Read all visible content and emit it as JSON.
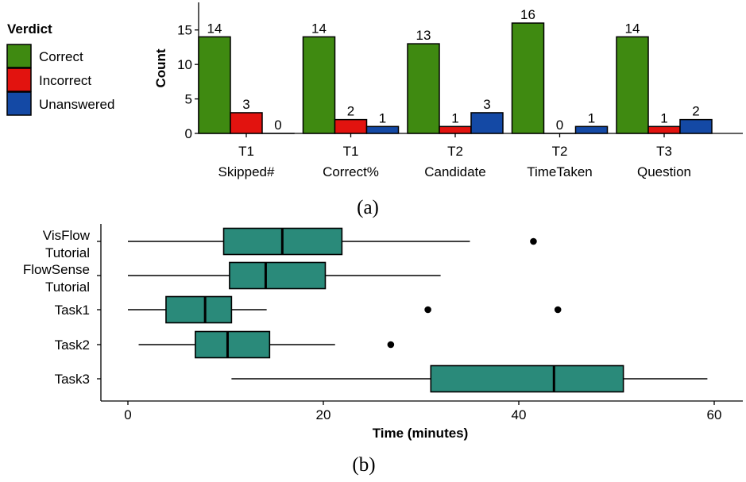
{
  "chart_data": [
    {
      "type": "bar",
      "panel_label": "(a)",
      "legend": {
        "title": "Verdict",
        "placement": "left",
        "entries": [
          {
            "label": "Correct",
            "color": "#3f8a11"
          },
          {
            "label": "Incorrect",
            "color": "#e2130f"
          },
          {
            "label": "Unanswered",
            "color": "#1449a5"
          }
        ]
      },
      "ylabel": "Count",
      "ylim": [
        0,
        19
      ],
      "yticks": [
        0,
        5,
        10,
        15
      ],
      "grid": false,
      "categories": [
        {
          "line1": "T1",
          "line2": "Skipped#"
        },
        {
          "line1": "T1",
          "line2": "Correct%"
        },
        {
          "line1": "T2",
          "line2": "Candidate"
        },
        {
          "line1": "T2",
          "line2": "TimeTaken"
        },
        {
          "line1": "T3",
          "line2": "Question"
        }
      ],
      "series": [
        {
          "name": "Correct",
          "color": "#3f8a11",
          "values": [
            14,
            14,
            13,
            16,
            14
          ]
        },
        {
          "name": "Incorrect",
          "color": "#e2130f",
          "values": [
            3,
            2,
            1,
            0,
            1
          ]
        },
        {
          "name": "Unanswered",
          "color": "#1449a5",
          "values": [
            0,
            1,
            3,
            1,
            2
          ]
        }
      ]
    },
    {
      "type": "boxplot",
      "panel_label": "(b)",
      "xlabel": "Time (minutes)",
      "xlim": [
        -3,
        63
      ],
      "xticks": [
        0,
        20,
        40,
        60
      ],
      "grid": false,
      "box_color": "#2a8a7a",
      "categories": [
        {
          "lines": [
            "VisFlow",
            "Tutorial"
          ],
          "whisker_low": 0,
          "q1": 9.8,
          "median": 15.8,
          "q3": 21.9,
          "whisker_high": 35,
          "outliers": [
            41.5
          ]
        },
        {
          "lines": [
            "FlowSense",
            "Tutorial"
          ],
          "whisker_low": 0,
          "q1": 10.4,
          "median": 14.1,
          "q3": 20.2,
          "whisker_high": 32,
          "outliers": []
        },
        {
          "lines": [
            "Task1"
          ],
          "whisker_low": 0,
          "q1": 3.9,
          "median": 7.9,
          "q3": 10.6,
          "whisker_high": 14.2,
          "outliers": [
            30.7,
            44
          ]
        },
        {
          "lines": [
            "Task2"
          ],
          "whisker_low": 1.1,
          "q1": 6.9,
          "median": 10.2,
          "q3": 14.5,
          "whisker_high": 21.2,
          "outliers": [
            26.9
          ]
        },
        {
          "lines": [
            "Task3"
          ],
          "whisker_low": 10.6,
          "q1": 31,
          "median": 43.6,
          "q3": 50.7,
          "whisker_high": 59.3,
          "outliers": []
        }
      ]
    }
  ]
}
